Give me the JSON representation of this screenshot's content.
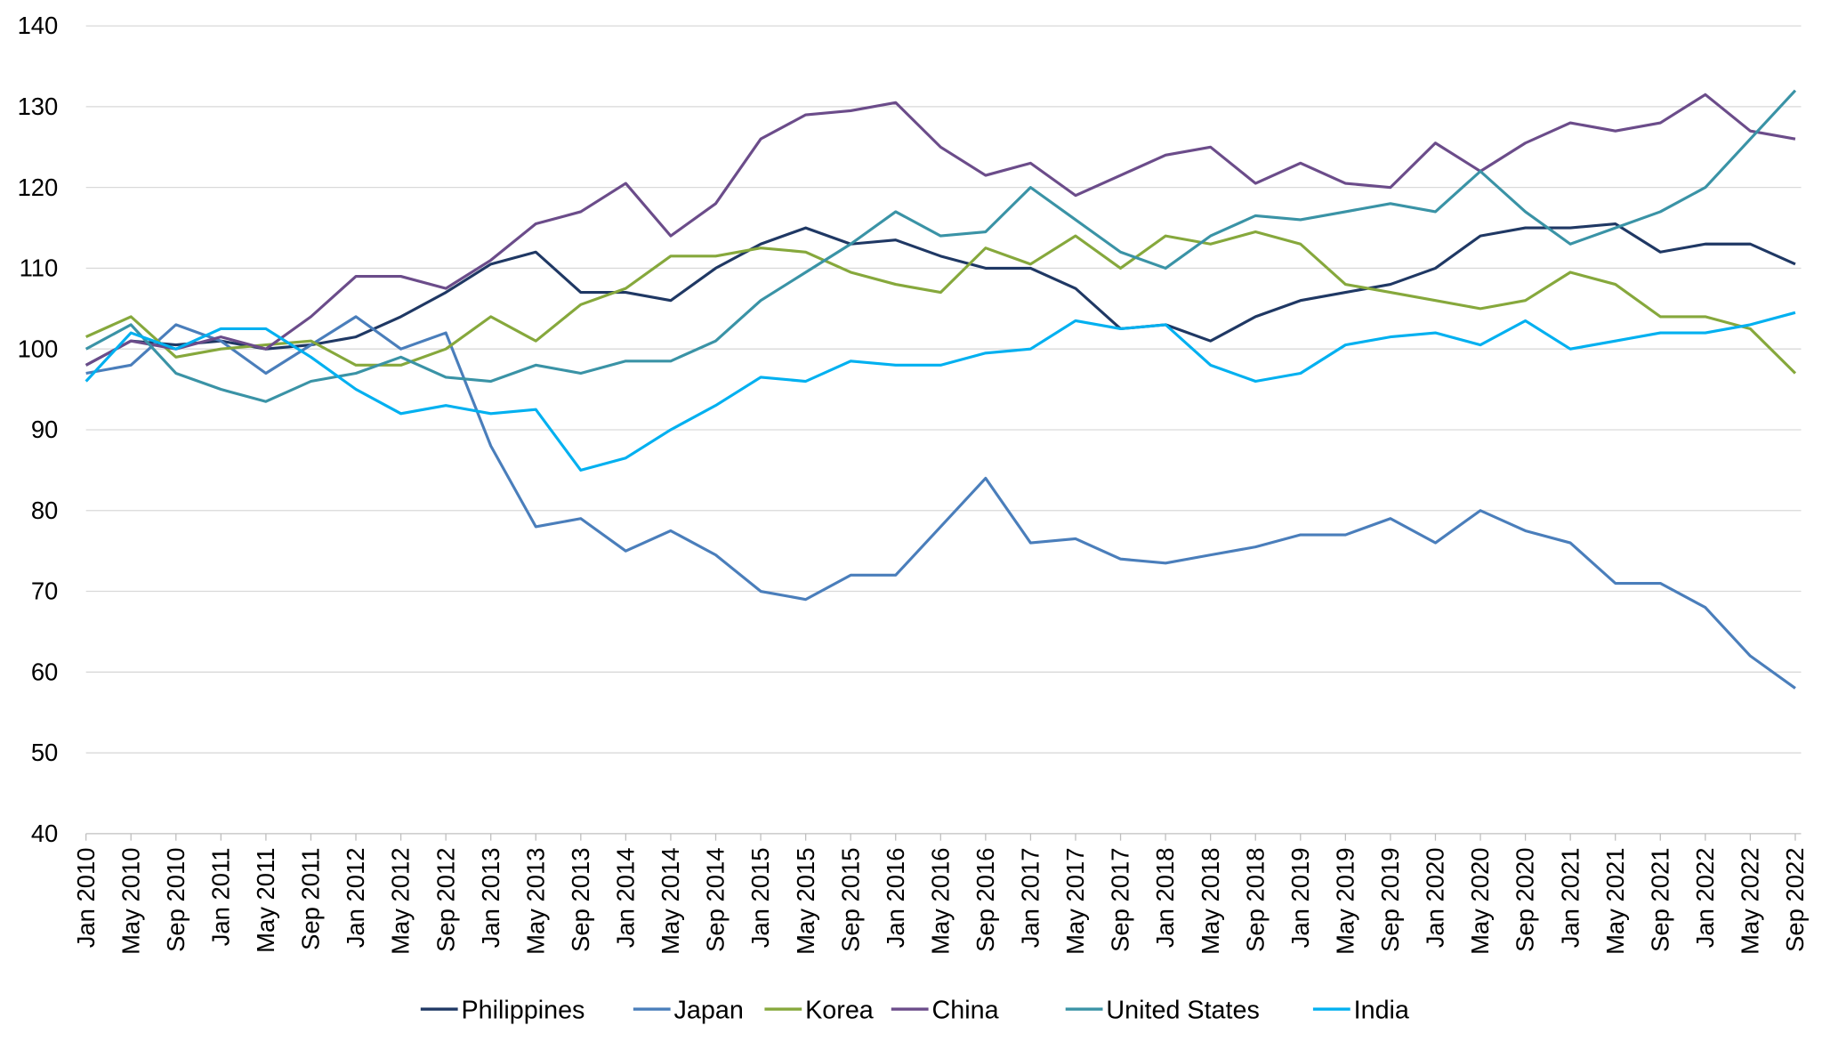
{
  "chart_data": {
    "type": "line",
    "title": "",
    "xlabel": "",
    "ylabel": "",
    "ylim": [
      40,
      140
    ],
    "yticks": [
      40,
      50,
      60,
      70,
      80,
      90,
      100,
      110,
      120,
      130,
      140
    ],
    "grid": "horizontal",
    "legend_position": "bottom",
    "categories": [
      "Jan 2010",
      "May 2010",
      "Sep 2010",
      "Jan 2011",
      "May 2011",
      "Sep 2011",
      "Jan 2012",
      "May 2012",
      "Sep 2012",
      "Jan 2013",
      "May 2013",
      "Sep 2013",
      "Jan 2014",
      "May 2014",
      "Sep 2014",
      "Jan 2015",
      "May 2015",
      "Sep 2015",
      "Jan 2016",
      "May 2016",
      "Sep 2016",
      "Jan 2017",
      "May 2017",
      "Sep 2017",
      "Jan 2018",
      "May 2018",
      "Sep 2018",
      "Jan 2019",
      "May 2019",
      "Sep 2019",
      "Jan 2020",
      "May 2020",
      "Sep 2020",
      "Jan 2021",
      "May 2021",
      "Sep 2021",
      "Jan 2022",
      "May 2022",
      "Sep 2022"
    ],
    "series": [
      {
        "name": "Philippines",
        "color": "#1f3864",
        "values": [
          98,
          101,
          100.5,
          101,
          100,
          100.5,
          101.5,
          104,
          107,
          110.5,
          112,
          107,
          107,
          106,
          110,
          113,
          115,
          113,
          113.5,
          111.5,
          110,
          110,
          107.5,
          102.5,
          103,
          101,
          104,
          106,
          107,
          108,
          110,
          114,
          115,
          115,
          115.5,
          112,
          113,
          113,
          110.5
        ]
      },
      {
        "name": "Japan",
        "color": "#4a7ebb",
        "values": [
          97,
          98,
          103,
          101,
          97,
          100.5,
          104,
          100,
          102,
          88,
          78,
          79,
          75,
          77.5,
          74.5,
          70,
          69,
          72,
          72,
          78,
          84,
          76,
          76.5,
          74,
          73.5,
          74.5,
          75.5,
          77,
          77,
          79,
          76,
          80,
          77.5,
          76,
          71,
          71,
          68,
          62,
          58
        ]
      },
      {
        "name": "Korea",
        "color": "#86a83c",
        "values": [
          101.5,
          104,
          99,
          100,
          100.5,
          101,
          98,
          98,
          100,
          104,
          101,
          105.5,
          107.5,
          111.5,
          111.5,
          112.5,
          112,
          109.5,
          108,
          107,
          112.5,
          110.5,
          114,
          110,
          114,
          113,
          114.5,
          113,
          108,
          107,
          106,
          105,
          106,
          109.5,
          108,
          104,
          104,
          102.5,
          97
        ]
      },
      {
        "name": "China",
        "color": "#6b4c8a",
        "values": [
          98,
          101,
          100,
          101.5,
          100,
          104,
          109,
          109,
          107.5,
          111,
          115.5,
          117,
          120.5,
          114,
          118,
          126,
          129,
          129.5,
          130.5,
          125,
          121.5,
          123,
          119,
          121.5,
          124,
          125,
          120.5,
          123,
          120.5,
          120,
          125.5,
          122,
          125.5,
          128,
          127,
          128,
          131.5,
          127,
          126
        ]
      },
      {
        "name": "United States",
        "color": "#3a93a6",
        "values": [
          100,
          103,
          97,
          95,
          93.5,
          96,
          97,
          99,
          96.5,
          96,
          98,
          97,
          98.5,
          98.5,
          101,
          106,
          109.5,
          113,
          117,
          114,
          114.5,
          120,
          116,
          112,
          110,
          114,
          116.5,
          116,
          117,
          118,
          117,
          122,
          117,
          113,
          115,
          117,
          120,
          126,
          132
        ]
      },
      {
        "name": "India",
        "color": "#00b0f0",
        "values": [
          96,
          102,
          100,
          102.5,
          102.5,
          99,
          95,
          92,
          93,
          92,
          92.5,
          85,
          86.5,
          90,
          93,
          96.5,
          96,
          98.5,
          98,
          98,
          99.5,
          100,
          103.5,
          102.5,
          103,
          98,
          96,
          97,
          100.5,
          101.5,
          102,
          100.5,
          103.5,
          100,
          101,
          102,
          102,
          103,
          104.5
        ]
      }
    ]
  }
}
